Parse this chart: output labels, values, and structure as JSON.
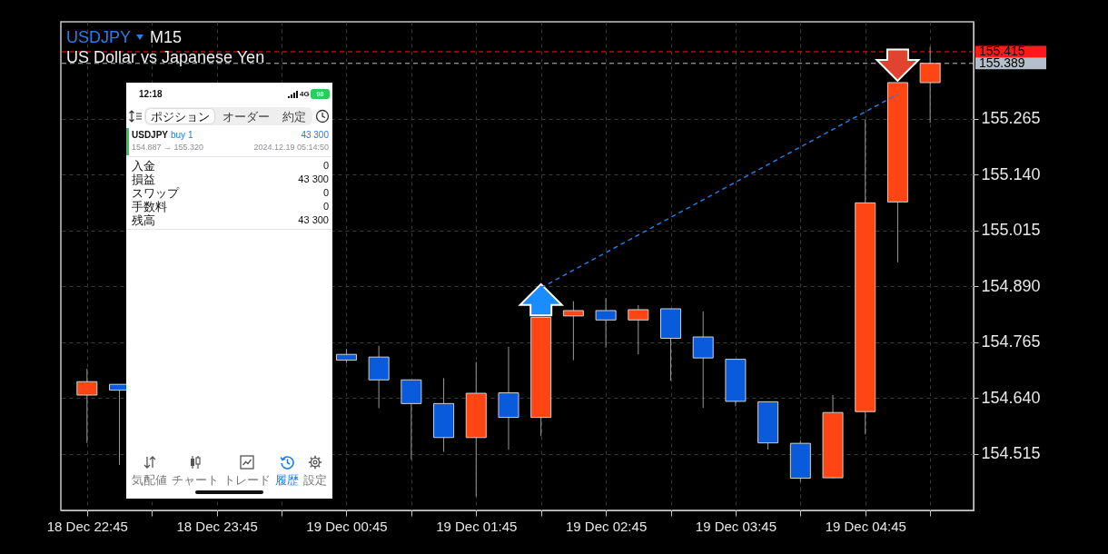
{
  "chart_data": [
    {
      "type": "candlestick",
      "title": "USDJPY",
      "subtitle": "US Dollar vs Japanese Yen",
      "annotations": [
        "M15"
      ],
      "x": [
        "--12-18T22:45",
        "--12-18T23:00",
        "--12-19T00:45",
        "--12-19T01:00",
        "--12-19T01:15",
        "--12-19T01:30",
        "--12-19T01:45",
        "--12-19T02:00",
        "--12-19T02:15",
        "--12-19T02:30",
        "--12-19T02:45",
        "--12-19T03:00",
        "--12-19T03:15",
        "--12-19T03:30",
        "--12-19T03:45",
        "--12-19T04:00",
        "--12-19T04:15",
        "--12-19T04:30",
        "--12-19T04:45",
        "--12-19T05:00",
        "--12-19T05:15"
      ],
      "ohlc": [
        [
          154.647,
          154.706,
          154.54,
          154.677
        ],
        [
          154.671,
          154.671,
          154.491,
          154.658
        ],
        [
          154.738,
          154.75,
          154.719,
          154.725
        ],
        [
          154.732,
          154.757,
          154.618,
          154.681
        ],
        [
          154.681,
          154.681,
          154.503,
          154.628
        ],
        [
          154.628,
          154.685,
          154.52,
          154.552
        ],
        [
          154.552,
          154.721,
          154.42,
          154.651
        ],
        [
          154.652,
          154.755,
          154.525,
          154.597
        ],
        [
          154.597,
          154.821,
          154.555,
          154.821
        ],
        [
          154.824,
          154.857,
          154.725,
          154.836
        ],
        [
          154.836,
          154.864,
          154.753,
          154.815
        ],
        [
          154.815,
          154.848,
          154.738,
          154.838
        ],
        [
          154.84,
          154.84,
          154.679,
          154.774
        ],
        [
          154.777,
          154.834,
          154.618,
          154.73
        ],
        [
          154.727,
          154.727,
          154.622,
          154.633
        ],
        [
          154.632,
          154.632,
          154.525,
          154.54
        ],
        [
          154.539,
          154.545,
          154.453,
          154.461
        ],
        [
          154.462,
          154.647,
          154.46,
          154.608
        ],
        [
          154.61,
          155.263,
          154.559,
          155.077
        ],
        [
          155.079,
          155.346,
          154.944,
          155.346
        ],
        [
          155.346,
          155.426,
          155.256,
          155.389
        ]
      ],
      "colors": [
        "#ff4514",
        "#0a5adc",
        "#0a5adc",
        "#0a5adc",
        "#0a5adc",
        "#0a5adc",
        "#ff4514",
        "#0a5adc",
        "#ff4514",
        "#ff4514",
        "#0a5adc",
        "#ff4514",
        "#0a5adc",
        "#0a5adc",
        "#0a5adc",
        "#0a5adc",
        "#0a5adc",
        "#ff4514",
        "#ff4514",
        "#ff4514",
        "#ff4514"
      ],
      "series": [
        {
          "type": "line",
          "x": [
            "--12-19T02:15",
            "--12-19T05:00"
          ],
          "values": [
            154.887,
            155.32
          ],
          "color": "#1f7ae6",
          "line_style": "dashed"
        }
      ],
      "xlim": [
        "--12-18T22:35",
        "--12-19T05:33"
      ],
      "xticks": [
        {
          "value": "--12-18T22:45",
          "label": "18 Dec 22:45"
        },
        {
          "value": "--12-18T23:15",
          "label": null
        },
        {
          "value": "--12-18T23:45",
          "label": "18 Dec 23:45"
        },
        {
          "value": "--12-19T00:15",
          "label": null
        },
        {
          "value": "--12-19T00:45",
          "label": "19 Dec 00:45"
        },
        {
          "value": "--12-19T01:15",
          "label": null
        },
        {
          "value": "--12-19T01:45",
          "label": "19 Dec 01:45"
        },
        {
          "value": "--12-19T02:15",
          "label": null
        },
        {
          "value": "--12-19T02:45",
          "label": "19 Dec 02:45"
        },
        {
          "value": "--12-19T03:15",
          "label": null
        },
        {
          "value": "--12-19T03:45",
          "label": "19 Dec 03:45"
        },
        {
          "value": "--12-19T04:15",
          "label": null
        },
        {
          "value": "--12-19T04:45",
          "label": "19 Dec 04:45"
        },
        {
          "value": "--12-19T05:15",
          "label": null
        }
      ],
      "ylim": [
        154.389,
        155.482
      ],
      "yticks": [
        154.515,
        {
          "value": 154.64,
          "label": "154.640"
        },
        154.765,
        {
          "value": 154.89,
          "label": "154.890"
        },
        155.015,
        {
          "value": 155.14,
          "label": "155.140"
        },
        155.265
      ],
      "ref_lines": [
        {
          "axis": "y",
          "value": 155.415,
          "label": "155.415",
          "color": "#ff1a1a",
          "line_style": "dashed"
        },
        {
          "axis": "y",
          "value": 155.389,
          "label": "155.389",
          "color": "#b4bfcb",
          "line_style": "dashed"
        }
      ],
      "grid": true
    },
    {
      "type": "other",
      "annotations": [
        "12:18",
        "4G",
        "98",
        "ポジション",
        "オーダー",
        "約定",
        "USDJPY",
        "buy 1",
        "43 300",
        "154.887 → 155.320",
        "2024.12.19 05:14:50",
        "入金",
        "0",
        "損益",
        "43 300",
        "スワップ",
        "0",
        "手数料",
        "0",
        "残高",
        "43 300",
        "気配値",
        "チャート",
        "トレード",
        "履歴",
        "設定"
      ]
    }
  ]
}
